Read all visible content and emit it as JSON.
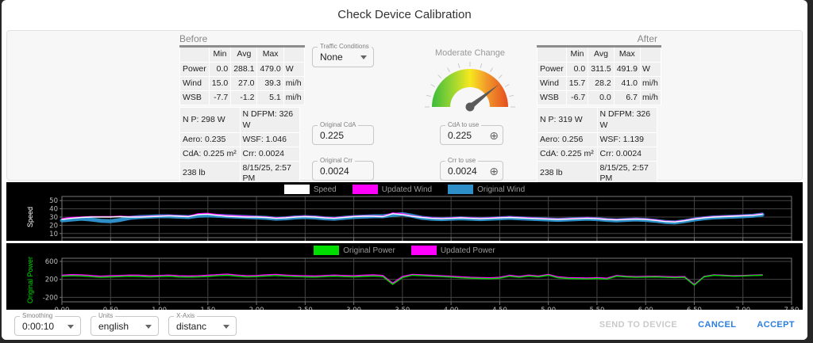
{
  "title": "Check Device Calibration",
  "panel": {
    "before": {
      "label": "Before",
      "stats": {
        "columns": [
          "Min",
          "Avg",
          "Max"
        ],
        "rows": [
          [
            "Power",
            "0.0",
            "288.1",
            "479.0",
            "W"
          ],
          [
            "Wind",
            "15.0",
            "27.0",
            "39.3",
            "mi/h"
          ],
          [
            "WSB",
            "-7.7",
            "-1.2",
            "5.1",
            "mi/h"
          ]
        ]
      },
      "details": [
        [
          "N P: 298 W",
          "N DFPM: 326 W"
        ],
        [
          "Aero: 0.235",
          "WSF: 1.046"
        ],
        [
          "CdA: 0.225 m²",
          "Crr: 0.0024"
        ],
        [
          "238 lb",
          "8/15/25, 2:57 PM"
        ]
      ]
    },
    "after": {
      "label": "After",
      "stats": {
        "columns": [
          "Min",
          "Avg",
          "Max"
        ],
        "rows": [
          [
            "Power",
            "0.0",
            "311.5",
            "491.9",
            "W"
          ],
          [
            "Wind",
            "15.7",
            "28.2",
            "41.0",
            "mi/h"
          ],
          [
            "WSB",
            "-6.7",
            "0.0",
            "6.7",
            "mi/h"
          ]
        ]
      },
      "details": [
        [
          "N P: 319 W",
          "N DFPM: 326 W"
        ],
        [
          "Aero: 0.256",
          "WSF: 1.139"
        ],
        [
          "CdA: 0.225 m²",
          "Crr: 0.0024"
        ],
        [
          "238 lb",
          "8/15/25, 2:57 PM"
        ]
      ]
    },
    "traffic": {
      "label": "Traffic Conditions",
      "value": "None"
    },
    "gauge": {
      "label": "Moderate Change",
      "needle_angle_deg": 38
    },
    "fields": {
      "original_cda": {
        "label": "Original CdA",
        "value": "0.225"
      },
      "cda_to_use": {
        "label": "CdA to use",
        "value": "0.225"
      },
      "original_crr": {
        "label": "Original Crr",
        "value": "0.0024"
      },
      "crr_to_use": {
        "label": "Crr to use",
        "value": "0.0024"
      }
    }
  },
  "footer": {
    "smoothing": {
      "label": "Smoothing",
      "value": "0:00:10"
    },
    "units": {
      "label": "Units",
      "value": "english"
    },
    "xaxis": {
      "label": "X-Axis",
      "value": "distanc"
    },
    "buttons": {
      "send": "SEND TO DEVICE",
      "cancel": "CANCEL",
      "accept": "ACCEPT"
    }
  },
  "chart_data": [
    {
      "type": "line",
      "ylabel": "Speed",
      "ylabel_color": "#ffffff",
      "ylim": [
        5,
        55
      ],
      "yticks": [
        10,
        20,
        30,
        40,
        50
      ],
      "xlim": [
        0,
        7.5
      ],
      "xticks": [
        0,
        0.5,
        1,
        1.5,
        2,
        2.5,
        3,
        3.5,
        4,
        4.5,
        5,
        5.5,
        6,
        6.5,
        7,
        7.5
      ],
      "x_start": 0,
      "x_step": 0.1,
      "grid": true,
      "legend_position": "top",
      "legend": [
        {
          "label": "Speed",
          "color": "#ffffff"
        },
        {
          "label": "Updated Wind",
          "color": "#ff00ff"
        },
        {
          "label": "Original Wind",
          "color": "#2d8ec8"
        }
      ],
      "series": [
        {
          "name": "Original Wind",
          "color": "#2d8ec8",
          "width": 5,
          "values": [
            26,
            27,
            28,
            27,
            25.5,
            25,
            26.5,
            29,
            30,
            30.5,
            31,
            31,
            30.5,
            30,
            31.5,
            32,
            31.5,
            31,
            30.5,
            30,
            29.5,
            29,
            28,
            28.5,
            29.5,
            30,
            29.5,
            28.5,
            28,
            29,
            30,
            30.5,
            31,
            31,
            32.5,
            33.5,
            31.5,
            29,
            28,
            27.5,
            28,
            28.5,
            28,
            27.5,
            28,
            28.5,
            29,
            28.5,
            28,
            27.5,
            27,
            26.5,
            27,
            27.5,
            28,
            27.5,
            26.5,
            26,
            26.5,
            27,
            26.5,
            25.5,
            24,
            23.5,
            25,
            27,
            28.5,
            29.5,
            30,
            30.5,
            31,
            31.5,
            33
          ]
        },
        {
          "name": "Updated Wind",
          "color": "#ff00ff",
          "width": 1.4,
          "values": [
            28,
            29.5,
            30,
            30.5,
            30.5,
            30.5,
            31,
            30.5,
            30.5,
            31,
            31.5,
            32,
            31.5,
            31,
            34,
            34.5,
            33,
            32,
            31.5,
            31,
            30.5,
            30,
            29,
            29.5,
            30.5,
            31,
            30.5,
            29.5,
            29,
            30,
            31,
            31.5,
            31.5,
            31,
            35,
            34,
            31.5,
            30,
            29,
            28.5,
            29,
            29.5,
            29,
            28.5,
            29,
            29.5,
            30,
            29.5,
            29,
            28.5,
            28,
            27.5,
            28,
            28.5,
            29,
            28.5,
            27.5,
            27,
            27.5,
            28,
            27.5,
            26.5,
            25,
            24.5,
            26,
            28,
            29.5,
            30.5,
            31,
            31.5,
            32,
            32.5,
            34
          ]
        },
        {
          "name": "Speed",
          "color": "#ffffff",
          "width": 1.4,
          "values": [
            27,
            28.5,
            29.5,
            30,
            30,
            30,
            30.5,
            30,
            30,
            30.5,
            31,
            31.5,
            31,
            30.5,
            33,
            33.5,
            32,
            31,
            30.5,
            30,
            30,
            29.5,
            28.5,
            29,
            30,
            30.5,
            30,
            29,
            28.5,
            29.5,
            30.5,
            31,
            31,
            30.5,
            34,
            33,
            31,
            29.5,
            28.5,
            28,
            28.5,
            29,
            28.5,
            28,
            28.5,
            29,
            29.5,
            29,
            28.5,
            28,
            27.5,
            27,
            27.5,
            28,
            28.5,
            28,
            27,
            26.5,
            27,
            27.5,
            27,
            26,
            24.5,
            24,
            25.5,
            27.5,
            29,
            30,
            30.5,
            31,
            31.5,
            32,
            33.5
          ]
        }
      ]
    },
    {
      "type": "line",
      "ylabel": "Original Power",
      "ylabel_color": "#00dd00",
      "ylim": [
        -300,
        670
      ],
      "yticks": [
        -200,
        200,
        600
      ],
      "xlim": [
        0,
        7.5
      ],
      "xticks": [
        0,
        0.5,
        1,
        1.5,
        2,
        2.5,
        3,
        3.5,
        4,
        4.5,
        5,
        5.5,
        6,
        6.5,
        7,
        7.5
      ],
      "xtick_labels": [
        "0.00",
        "0.50",
        "1.00",
        "1.50",
        "2.00",
        "2.50",
        "3.00",
        "3.50",
        "4.00",
        "4.50",
        "5.00",
        "5.50",
        "6.00",
        "6.50",
        "7.00",
        "7.50"
      ],
      "x_start": 0,
      "x_step": 0.1,
      "grid": true,
      "legend_position": "top",
      "legend": [
        {
          "label": "Original Power",
          "color": "#00dd00"
        },
        {
          "label": "Updated Power",
          "color": "#ff00ff"
        }
      ],
      "series": [
        {
          "name": "Updated Power",
          "color": "#ff00ff",
          "width": 1.4,
          "values": [
            295,
            305,
            300,
            285,
            270,
            280,
            285,
            295,
            290,
            280,
            285,
            295,
            280,
            275,
            280,
            290,
            305,
            315,
            295,
            280,
            285,
            300,
            310,
            295,
            285,
            280,
            275,
            285,
            295,
            285,
            280,
            290,
            300,
            285,
            115,
            265,
            310,
            300,
            290,
            280,
            270,
            255,
            245,
            240,
            235,
            245,
            290,
            265,
            295,
            275,
            310,
            255,
            240,
            235,
            230,
            240,
            225,
            285,
            270,
            260,
            265,
            270,
            260,
            255,
            260,
            85,
            265,
            300,
            290,
            280,
            285,
            295,
            300
          ]
        },
        {
          "name": "Original Power",
          "color": "#00dd00",
          "width": 1.4,
          "values": [
            270,
            280,
            275,
            260,
            245,
            255,
            260,
            270,
            265,
            255,
            260,
            270,
            255,
            250,
            255,
            265,
            280,
            290,
            270,
            255,
            260,
            275,
            285,
            270,
            260,
            255,
            250,
            260,
            270,
            260,
            255,
            265,
            275,
            260,
            90,
            240,
            290,
            280,
            270,
            260,
            250,
            235,
            225,
            220,
            215,
            225,
            270,
            245,
            275,
            255,
            290,
            235,
            220,
            215,
            210,
            220,
            205,
            270,
            255,
            245,
            250,
            255,
            245,
            240,
            245,
            70,
            255,
            290,
            280,
            270,
            275,
            285,
            290
          ]
        }
      ]
    }
  ]
}
